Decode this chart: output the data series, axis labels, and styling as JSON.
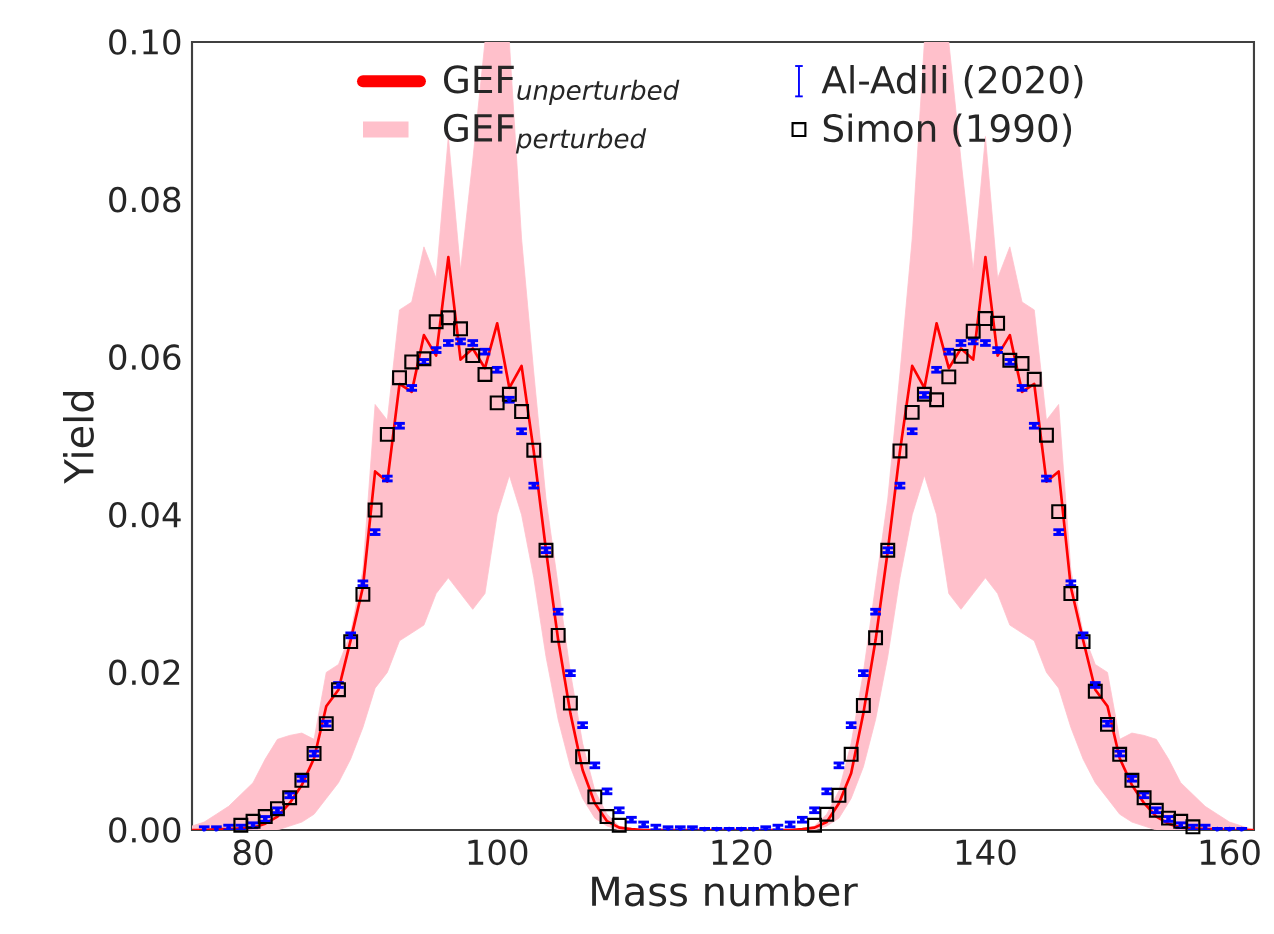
{
  "chart_data": {
    "type": "line",
    "xlabel": "Mass number",
    "ylabel": "Yield",
    "xlim": [
      75,
      162
    ],
    "ylim": [
      0,
      0.1
    ],
    "xticks": [
      80,
      100,
      120,
      140,
      160
    ],
    "yticks": [
      {
        "value": 0,
        "label": "0.00"
      },
      0.02,
      0.04,
      0.06,
      0.08,
      {
        "value": 0.1,
        "label": "0.10"
      }
    ],
    "legend": "top",
    "series": [
      {
        "name": "\\text{GEF}_{\\textit{unperturbed}}",
        "color": "#ff0000",
        "x": [
          75,
          76,
          77,
          78,
          79,
          80,
          81,
          82,
          83,
          84,
          85,
          86,
          87,
          88,
          89,
          90,
          91,
          92,
          93,
          94,
          95,
          96,
          97,
          98,
          99,
          100,
          101,
          102,
          103,
          104,
          105,
          106,
          107,
          108,
          109,
          110,
          111,
          112,
          113,
          114,
          115,
          116,
          117,
          118,
          119,
          120,
          121,
          122,
          123,
          124,
          125,
          126,
          127,
          128,
          129,
          130,
          131,
          132,
          133,
          134,
          135,
          136,
          137,
          138,
          139,
          140,
          141,
          142,
          143,
          144,
          145,
          146,
          147,
          148,
          149,
          150,
          151,
          152,
          153,
          154,
          155,
          156,
          157,
          158,
          159,
          160,
          161,
          162
        ],
        "values": [
          0,
          0,
          0.0001,
          0.0001,
          0.0002,
          0.0003,
          0.0008,
          0.0017,
          0.0034,
          0.0057,
          0.0091,
          0.0157,
          0.0178,
          0.0241,
          0.0308,
          0.0455,
          0.0442,
          0.0566,
          0.0556,
          0.0628,
          0.0602,
          0.0727,
          0.0597,
          0.0611,
          0.0586,
          0.0643,
          0.0561,
          0.0589,
          0.048,
          0.0355,
          0.0241,
          0.0148,
          0.0076,
          0.0034,
          0.0011,
          0.0003,
          0.0001,
          0,
          0,
          0,
          0,
          0,
          0,
          0,
          0,
          0,
          0,
          0,
          0,
          0,
          0.0001,
          0.0003,
          0.001,
          0.0034,
          0.0072,
          0.0148,
          0.0241,
          0.0354,
          0.0481,
          0.0589,
          0.0561,
          0.0643,
          0.0586,
          0.0611,
          0.0597,
          0.0727,
          0.0602,
          0.0628,
          0.0556,
          0.0566,
          0.0442,
          0.0455,
          0.0308,
          0.0241,
          0.0178,
          0.0157,
          0.0091,
          0.0057,
          0.0034,
          0.0017,
          0.0008,
          0.0003,
          0.0002,
          0.0001,
          0.0001,
          0,
          0,
          0
        ]
      },
      {
        "name": "\\text{GEF}_{\\textit{perturbed}}",
        "type": "line",
        "color": "#ffc0cb",
        "x": [
          75,
          76,
          77,
          78,
          79,
          80,
          81,
          82,
          83,
          84,
          85,
          86,
          87,
          88,
          89,
          90,
          91,
          92,
          93,
          94,
          95,
          96,
          97,
          98,
          99,
          100,
          101,
          102,
          103,
          104,
          105,
          106,
          107,
          108,
          109,
          110,
          111,
          112,
          113,
          114,
          115,
          116,
          117,
          118,
          119,
          120,
          121,
          122,
          123,
          124,
          125,
          126,
          127,
          128,
          129,
          130,
          131,
          132,
          133,
          134,
          135,
          136,
          137,
          138,
          139,
          140,
          141,
          142,
          143,
          144,
          145,
          146,
          147,
          148,
          149,
          150,
          151,
          152,
          153,
          154,
          155,
          156,
          157,
          158,
          159,
          160,
          161,
          162
        ],
        "values": [
          null,
          null,
          null,
          null,
          null,
          null,
          null,
          null,
          null,
          null,
          null,
          null,
          null,
          null,
          null,
          null,
          null,
          null,
          null,
          null,
          null,
          null,
          null,
          null,
          null,
          null,
          null,
          null,
          null,
          null,
          null,
          null,
          null,
          null,
          null,
          null,
          null,
          null,
          null,
          null,
          null,
          null,
          null,
          null,
          null,
          null,
          null,
          null,
          null,
          null,
          null,
          null,
          null,
          null,
          null,
          null,
          null,
          null,
          null,
          null,
          null,
          null,
          null,
          null,
          null,
          null,
          null,
          null,
          null,
          null,
          null,
          null,
          null,
          null,
          null,
          null,
          null,
          null,
          null,
          null,
          null,
          null,
          null,
          null,
          null,
          null,
          null,
          null
        ],
        "upper": [
          0.0005,
          0.001,
          0.002,
          0.003,
          0.0045,
          0.006,
          0.009,
          0.0115,
          0.012,
          0.0123,
          0.0115,
          0.02,
          0.021,
          0.025,
          0.033,
          0.054,
          0.052,
          0.066,
          0.067,
          0.074,
          0.07,
          0.088,
          0.071,
          0.085,
          0.1,
          0.1,
          0.1,
          0.075,
          0.058,
          0.042,
          0.031,
          0.02,
          0.011,
          0.005,
          0.002,
          0.0005,
          0,
          0,
          0,
          0,
          0,
          0,
          0,
          0,
          0,
          0,
          0,
          0,
          0,
          0,
          0,
          0.0005,
          0.002,
          0.005,
          0.011,
          0.02,
          0.031,
          0.042,
          0.058,
          0.075,
          0.1,
          0.1,
          0.1,
          0.085,
          0.071,
          0.088,
          0.07,
          0.074,
          0.067,
          0.066,
          0.052,
          0.054,
          0.033,
          0.025,
          0.021,
          0.02,
          0.0115,
          0.0123,
          0.012,
          0.0115,
          0.009,
          0.006,
          0.0045,
          0.003,
          0.002,
          0.001,
          0.0005,
          0
        ],
        "lower": [
          0,
          0,
          0,
          0,
          0,
          0,
          0,
          0,
          0.0005,
          0.001,
          0.002,
          0.004,
          0.006,
          0.009,
          0.013,
          0.018,
          0.02,
          0.024,
          0.025,
          0.026,
          0.03,
          0.032,
          0.03,
          0.028,
          0.03,
          0.04,
          0.045,
          0.04,
          0.032,
          0.022,
          0.014,
          0.008,
          0.004,
          0.0015,
          0.0005,
          0,
          0,
          0,
          0,
          0,
          0,
          0,
          0,
          0,
          0,
          0,
          0,
          0,
          0,
          0,
          0,
          0,
          0.0005,
          0.0015,
          0.004,
          0.008,
          0.014,
          0.022,
          0.032,
          0.04,
          0.045,
          0.04,
          0.03,
          0.028,
          0.03,
          0.032,
          0.03,
          0.026,
          0.025,
          0.024,
          0.02,
          0.018,
          0.013,
          0.009,
          0.006,
          0.004,
          0.002,
          0.001,
          0.0005,
          0,
          0,
          0,
          0,
          0,
          0,
          0,
          0,
          0
        ]
      },
      {
        "name": "Al-Adili (2020)",
        "type": "scatter",
        "color": "#0000ff",
        "marker": "circle",
        "x": [
          76,
          77,
          78,
          79,
          80,
          81,
          82,
          83,
          84,
          85,
          86,
          87,
          88,
          89,
          90,
          91,
          92,
          93,
          94,
          95,
          96,
          97,
          98,
          99,
          100,
          101,
          102,
          103,
          104,
          105,
          106,
          107,
          108,
          109,
          110,
          111,
          112,
          113,
          114,
          115,
          116,
          117,
          118,
          119,
          120,
          121,
          122,
          123,
          124,
          125,
          126,
          127,
          128,
          129,
          130,
          131,
          132,
          133,
          134,
          135,
          136,
          137,
          138,
          139,
          140,
          141,
          142,
          143,
          144,
          145,
          146,
          147,
          148,
          149,
          150,
          151,
          152,
          153,
          154,
          155,
          156,
          157,
          158,
          159,
          160,
          161
        ],
        "values": [
          0.0001,
          0.0001,
          0.0003,
          0.0003,
          0.0006,
          0.0014,
          0.0025,
          0.0044,
          0.0065,
          0.0097,
          0.0135,
          0.0184,
          0.0247,
          0.0313,
          0.0378,
          0.0446,
          0.0513,
          0.0561,
          0.0594,
          0.0609,
          0.0618,
          0.062,
          0.0618,
          0.0607,
          0.0584,
          0.0546,
          0.0506,
          0.0437,
          0.0355,
          0.0277,
          0.0199,
          0.0133,
          0.0082,
          0.0049,
          0.0025,
          0.0013,
          0.0007,
          0.0003,
          0.0002,
          0.0002,
          0.0002,
          0.0001,
          0.0001,
          0.0001,
          0.0001,
          0.0001,
          0.0002,
          0.0003,
          0.0007,
          0.0013,
          0.0025,
          0.0049,
          0.0082,
          0.0133,
          0.0199,
          0.0277,
          0.0355,
          0.0437,
          0.0506,
          0.0552,
          0.0584,
          0.0607,
          0.0618,
          0.062,
          0.0618,
          0.0609,
          0.0594,
          0.0561,
          0.0513,
          0.0446,
          0.0378,
          0.0313,
          0.0247,
          0.0184,
          0.0135,
          0.0097,
          0.0065,
          0.0044,
          0.0025,
          0.0014,
          0.0006,
          0.0003,
          0.0003,
          0.0001,
          0.0001,
          0.0001
        ],
        "errors": [
          0.0003,
          0.0003,
          0.0003,
          0.0003,
          0.0003,
          0.0003,
          0.0003,
          0.0003,
          0.0003,
          0.0003,
          0.0003,
          0.0003,
          0.0003,
          0.0003,
          0.0003,
          0.0003,
          0.0003,
          0.0003,
          0.0003,
          0.0003,
          0.0003,
          0.0003,
          0.0003,
          0.0003,
          0.0003,
          0.0003,
          0.0003,
          0.0003,
          0.0003,
          0.0003,
          0.0003,
          0.0003,
          0.0003,
          0.0003,
          0.0003,
          0.0003,
          0.0003,
          0.0003,
          0.0002,
          0.0002,
          0.0002,
          0.0001,
          0.0001,
          0.0001,
          0.0001,
          0.0001,
          0.0002,
          0.0003,
          0.0003,
          0.0003,
          0.0003,
          0.0003,
          0.0003,
          0.0003,
          0.0003,
          0.0003,
          0.0003,
          0.0003,
          0.0003,
          0.0003,
          0.0003,
          0.0003,
          0.0003,
          0.0003,
          0.0003,
          0.0003,
          0.0003,
          0.0003,
          0.0003,
          0.0003,
          0.0003,
          0.0003,
          0.0003,
          0.0003,
          0.0003,
          0.0003,
          0.0003,
          0.0003,
          0.0003,
          0.0003,
          0.0003,
          0.0003,
          0.0003,
          0.0001,
          0.0001,
          0.0001
        ]
      },
      {
        "name": "Simon (1990)",
        "type": "scatter",
        "color": "#000000",
        "marker": "square",
        "x": [
          79,
          80,
          81,
          82,
          83,
          84,
          85,
          86,
          87,
          88,
          89,
          90,
          91,
          92,
          93,
          94,
          95,
          96,
          97,
          98,
          99,
          100,
          101,
          102,
          103,
          104,
          105,
          106,
          107,
          108,
          109,
          110,
          126,
          127,
          128,
          129,
          130,
          131,
          132,
          133,
          134,
          135,
          136,
          137,
          138,
          139,
          140,
          141,
          142,
          143,
          144,
          145,
          146,
          147,
          148,
          149,
          150,
          151,
          152,
          153,
          154,
          155,
          156,
          157
        ],
        "values": [
          0.0006,
          0.0011,
          0.0017,
          0.0027,
          0.0041,
          0.0063,
          0.0097,
          0.0135,
          0.0178,
          0.0239,
          0.0299,
          0.0406,
          0.0502,
          0.0574,
          0.0594,
          0.0598,
          0.0645,
          0.065,
          0.0636,
          0.0602,
          0.0578,
          0.0542,
          0.0553,
          0.0531,
          0.0482,
          0.0355,
          0.0247,
          0.0161,
          0.0093,
          0.0042,
          0.0017,
          0.0006,
          0.0006,
          0.002,
          0.0044,
          0.0096,
          0.0158,
          0.0244,
          0.0355,
          0.0481,
          0.053,
          0.0553,
          0.0546,
          0.0575,
          0.0601,
          0.0633,
          0.0649,
          0.0643,
          0.0596,
          0.0592,
          0.0572,
          0.0501,
          0.0404,
          0.03,
          0.0239,
          0.0176,
          0.0134,
          0.0096,
          0.0063,
          0.0041,
          0.0025,
          0.0015,
          0.0011,
          0.0004
        ]
      }
    ]
  }
}
